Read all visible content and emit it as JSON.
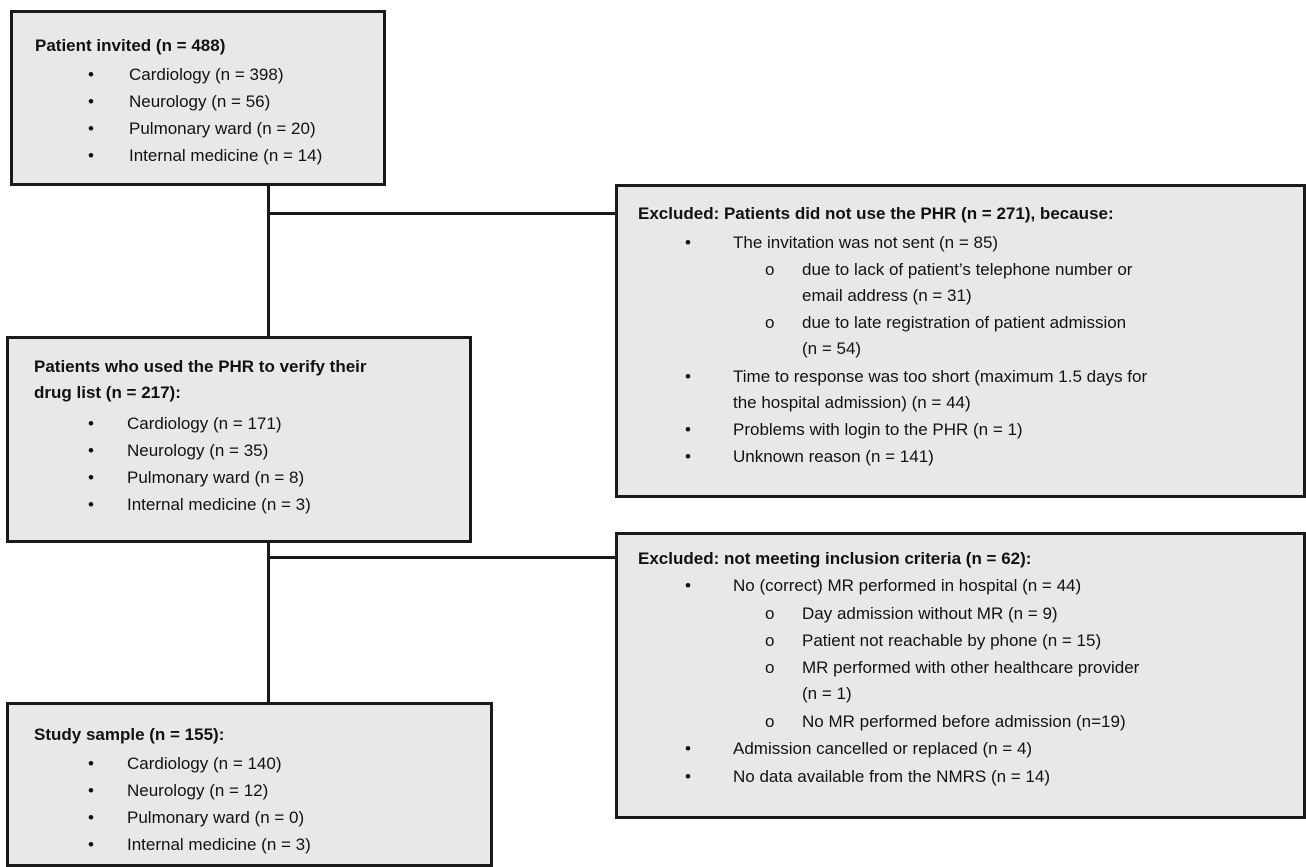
{
  "box1": {
    "title": "Patient invited (n = 488)",
    "items": [
      "Cardiology (n = 398)",
      "Neurology (n = 56)",
      "Pulmonary ward (n = 20)",
      "Internal medicine (n = 14)"
    ]
  },
  "box2": {
    "title_line1": "Patients who used the PHR to verify their",
    "title_line2": "drug list (n = 217):",
    "items": [
      "Cardiology (n = 171)",
      "Neurology (n = 35)",
      "Pulmonary ward (n = 8)",
      "Internal medicine (n = 3)"
    ]
  },
  "box3": {
    "title": "Study sample (n = 155):",
    "items": [
      "Cardiology (n = 140)",
      "Neurology (n = 12)",
      "Pulmonary ward (n = 0)",
      "Internal medicine (n = 3)"
    ]
  },
  "excl1": {
    "title": "Excluded: Patients did not use the PHR (n = 271), because:",
    "invitation": "The invitation was not sent (n = 85)",
    "sub1_line1": "due to lack of patient’s telephone number or",
    "sub1_line2": "email address (n = 31)",
    "sub2_line1": "due to late registration of patient admission",
    "sub2_line2": "(n = 54)",
    "time_line1": "Time to response was too short (maximum 1.5 days for",
    "time_line2": "the hospital admission) (n = 44)",
    "login": "Problems with login to the PHR (n = 1)",
    "unknown": "Unknown reason (n = 141)"
  },
  "excl2": {
    "title": "Excluded: not meeting inclusion criteria (n = 62):",
    "no_mr": "No (correct) MR performed in hospital (n = 44)",
    "sub1": "Day admission without MR (n = 9)",
    "sub2": "Patient not reachable by phone (n = 15)",
    "sub3_line1": "MR performed with other healthcare provider",
    "sub3_line2": "(n = 1)",
    "sub4": "No MR performed before admission (n=19)",
    "cancelled": "Admission cancelled or replaced (n = 4)",
    "nmrs": "No data available from the NMRS (n = 14)"
  },
  "symbols": {
    "bullet": "•",
    "sub_bullet": "o"
  }
}
